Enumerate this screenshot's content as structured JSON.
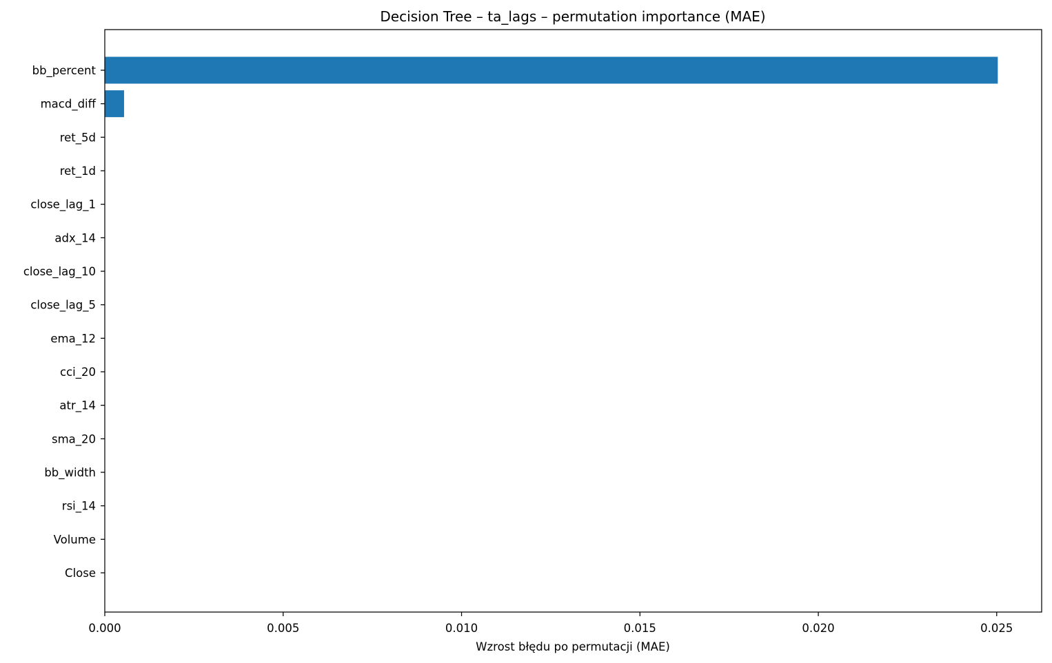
{
  "chart_data": {
    "type": "bar",
    "orientation": "horizontal",
    "title": "Decision Tree – ta_lags – permutation importance (MAE)",
    "xlabel": "Wzrost błędu po permutacji (MAE)",
    "ylabel": "",
    "categories": [
      "bb_percent",
      "macd_diff",
      "ret_5d",
      "ret_1d",
      "close_lag_1",
      "adx_14",
      "close_lag_10",
      "close_lag_5",
      "ema_12",
      "cci_20",
      "atr_14",
      "sma_20",
      "bb_width",
      "rsi_14",
      "Volume",
      "Close"
    ],
    "values": [
      0.02503,
      0.00054,
      0,
      0,
      0,
      0,
      0,
      0,
      0,
      0,
      0,
      0,
      0,
      0,
      0,
      0
    ],
    "xlim": [
      0,
      0.02626
    ],
    "xticks": [
      0,
      0.005,
      0.01,
      0.015,
      0.02,
      0.025
    ],
    "xtick_labels": [
      "0.000",
      "0.005",
      "0.010",
      "0.015",
      "0.020",
      "0.025"
    ],
    "bar_color": "#1f77b4",
    "grid": false,
    "legend": "none"
  }
}
